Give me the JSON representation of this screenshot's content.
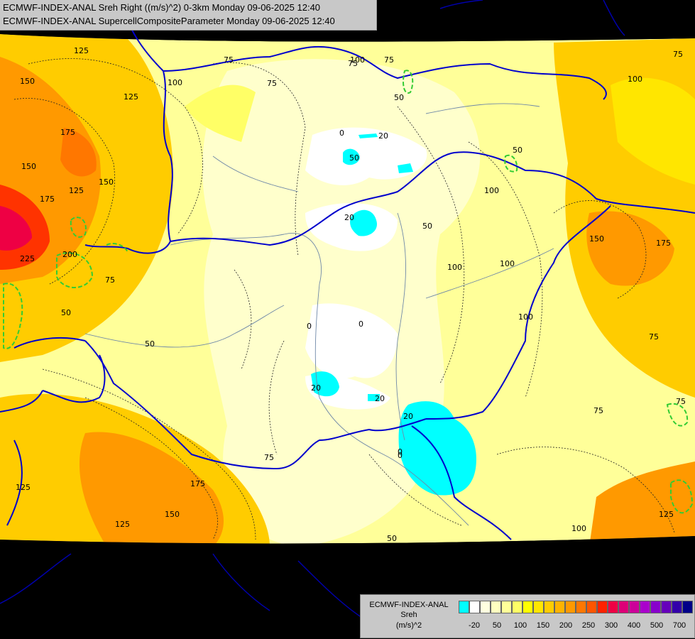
{
  "header": {
    "line1": "ECMWF-INDEX-ANAL Sreh Right ((m/s)^2) 0-3km Monday 09-06-2025 12:40",
    "line2": "ECMWF-INDEX-ANAL SupercellCompositeParameter Monday 09-06-2025 12:40"
  },
  "legend": {
    "label_line1": "ECMWF-INDEX-ANAL",
    "label_line2": "Sreh",
    "label_line3": "(m/s)^2",
    "colors": [
      "#00ffff",
      "#ffffff",
      "#ffffe0",
      "#ffffc0",
      "#ffff99",
      "#ffff66",
      "#ffff00",
      "#ffe600",
      "#ffcc00",
      "#ffb300",
      "#ff9900",
      "#ff7700",
      "#ff5500",
      "#ff2200",
      "#ee0044",
      "#dd0077",
      "#cc0099",
      "#aa00cc",
      "#8800cc",
      "#6600bb",
      "#3300aa",
      "#000088"
    ],
    "ticks": [
      "-20",
      "50",
      "100",
      "150",
      "200",
      "250",
      "300",
      "400",
      "500",
      "700"
    ]
  },
  "map": {
    "contour_labels": [
      "125",
      "75",
      "150",
      "125",
      "100",
      "75",
      "100",
      "75",
      "50",
      "50",
      "75",
      "175",
      "150",
      "125",
      "150",
      "175",
      "200",
      "225",
      "75",
      "50",
      "50",
      "0",
      "20",
      "100",
      "50",
      "20",
      "0",
      "20",
      "100",
      "150",
      "175",
      "100",
      "100",
      "0",
      "0",
      "20",
      "20",
      "0",
      "125",
      "175",
      "150",
      "125",
      "75",
      "75",
      "50",
      "75",
      "125",
      "100",
      "50",
      "75",
      "100",
      "75"
    ]
  }
}
